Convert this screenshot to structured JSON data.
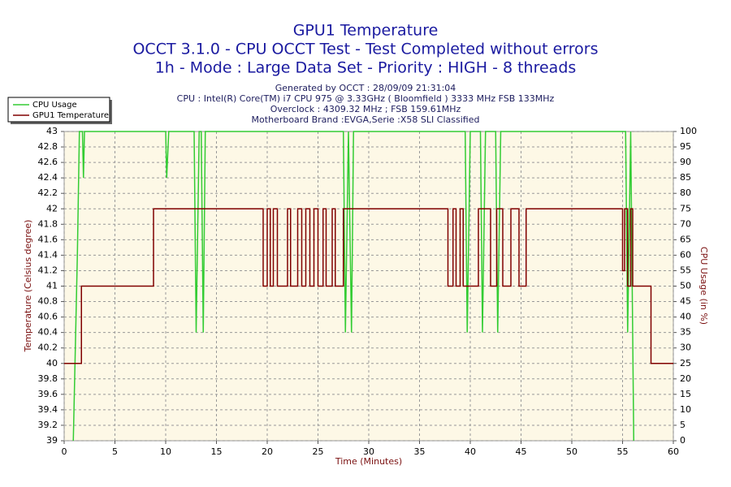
{
  "chart_data": {
    "type": "line",
    "title": "GPU1 Temperature",
    "subtitle": [
      "OCCT 3.1.0 - CPU OCCT Test - Test Completed without errors",
      "1h - Mode : Large Data Set - Priority : HIGH - 8 threads"
    ],
    "info": [
      "Generated by OCCT : 28/09/09 21:31:04",
      "CPU : Intel(R) Core(TM) i7 CPU 975 @ 3.33GHz ( Bloomfield ) 3333 MHz FSB 133MHz",
      "Overclock : 4309.32 MHz ; FSB 159.61MHz",
      "Motherboard Brand :EVGA,Serie :X58 SLI Classified"
    ],
    "x_label": "Time (Minutes)",
    "y_label": "Temperature (Celsius degree)",
    "y2_label": "CPU Usage (in %)",
    "xlim": [
      0,
      60
    ],
    "xticks": [
      0,
      5,
      10,
      15,
      20,
      25,
      30,
      35,
      40,
      45,
      50,
      55,
      60
    ],
    "ylim": [
      39,
      43
    ],
    "yticks": [
      39,
      39.2,
      39.4,
      39.6,
      39.8,
      40,
      40.2,
      40.4,
      40.6,
      40.8,
      41,
      41.2,
      41.4,
      41.6,
      41.8,
      42,
      42.2,
      42.4,
      42.6,
      42.8,
      43
    ],
    "y2lim": [
      0,
      100
    ],
    "y2ticks": [
      0,
      5,
      10,
      15,
      20,
      25,
      30,
      35,
      40,
      45,
      50,
      55,
      60,
      65,
      70,
      75,
      80,
      85,
      90,
      95,
      100
    ],
    "grid": true,
    "legend": "top-left",
    "series": [
      {
        "name": "CPU Usage",
        "color": "#33cc33",
        "axis": "y2",
        "x": [
          0.9,
          1.1,
          1.3,
          1.5,
          1.8,
          1.9,
          2.0,
          10.0,
          10.1,
          10.3,
          12.8,
          13.0,
          13.3,
          13.5,
          13.7,
          13.9,
          27.5,
          27.7,
          28.0,
          28.3,
          28.5,
          39.5,
          39.7,
          40.0,
          41.0,
          41.2,
          41.5,
          42.5,
          42.7,
          43.0,
          55.3,
          55.5,
          55.8,
          56.1
        ],
        "values": [
          0,
          30,
          60,
          100,
          100,
          85,
          100,
          100,
          85,
          100,
          100,
          35,
          100,
          100,
          35,
          100,
          100,
          35,
          100,
          35,
          100,
          100,
          35,
          100,
          100,
          35,
          100,
          100,
          35,
          100,
          100,
          35,
          100,
          0
        ]
      },
      {
        "name": "GPU1 Temperature",
        "color": "#800000",
        "step": "post",
        "x": [
          0,
          1.7,
          8.8,
          19.6,
          20.0,
          20.3,
          20.6,
          21.0,
          22.0,
          22.3,
          23.0,
          23.4,
          23.8,
          24.2,
          24.6,
          25.0,
          25.5,
          25.8,
          26.4,
          26.7,
          27.5,
          37.8,
          38.3,
          38.6,
          39.0,
          39.3,
          40.8,
          42.0,
          42.6,
          43.2,
          44.0,
          44.8,
          45.5,
          55.0,
          55.2,
          55.5,
          55.8,
          56.0,
          57.8,
          60
        ],
        "values": [
          40,
          41,
          42,
          41,
          42,
          41,
          42,
          41,
          42,
          41,
          42,
          41,
          42,
          41,
          42,
          41,
          42,
          41,
          42,
          41,
          42,
          41,
          42,
          41,
          42,
          41,
          42,
          41,
          42,
          41,
          42,
          41,
          42,
          41.2,
          42,
          41,
          42,
          41,
          40,
          40
        ]
      }
    ]
  }
}
